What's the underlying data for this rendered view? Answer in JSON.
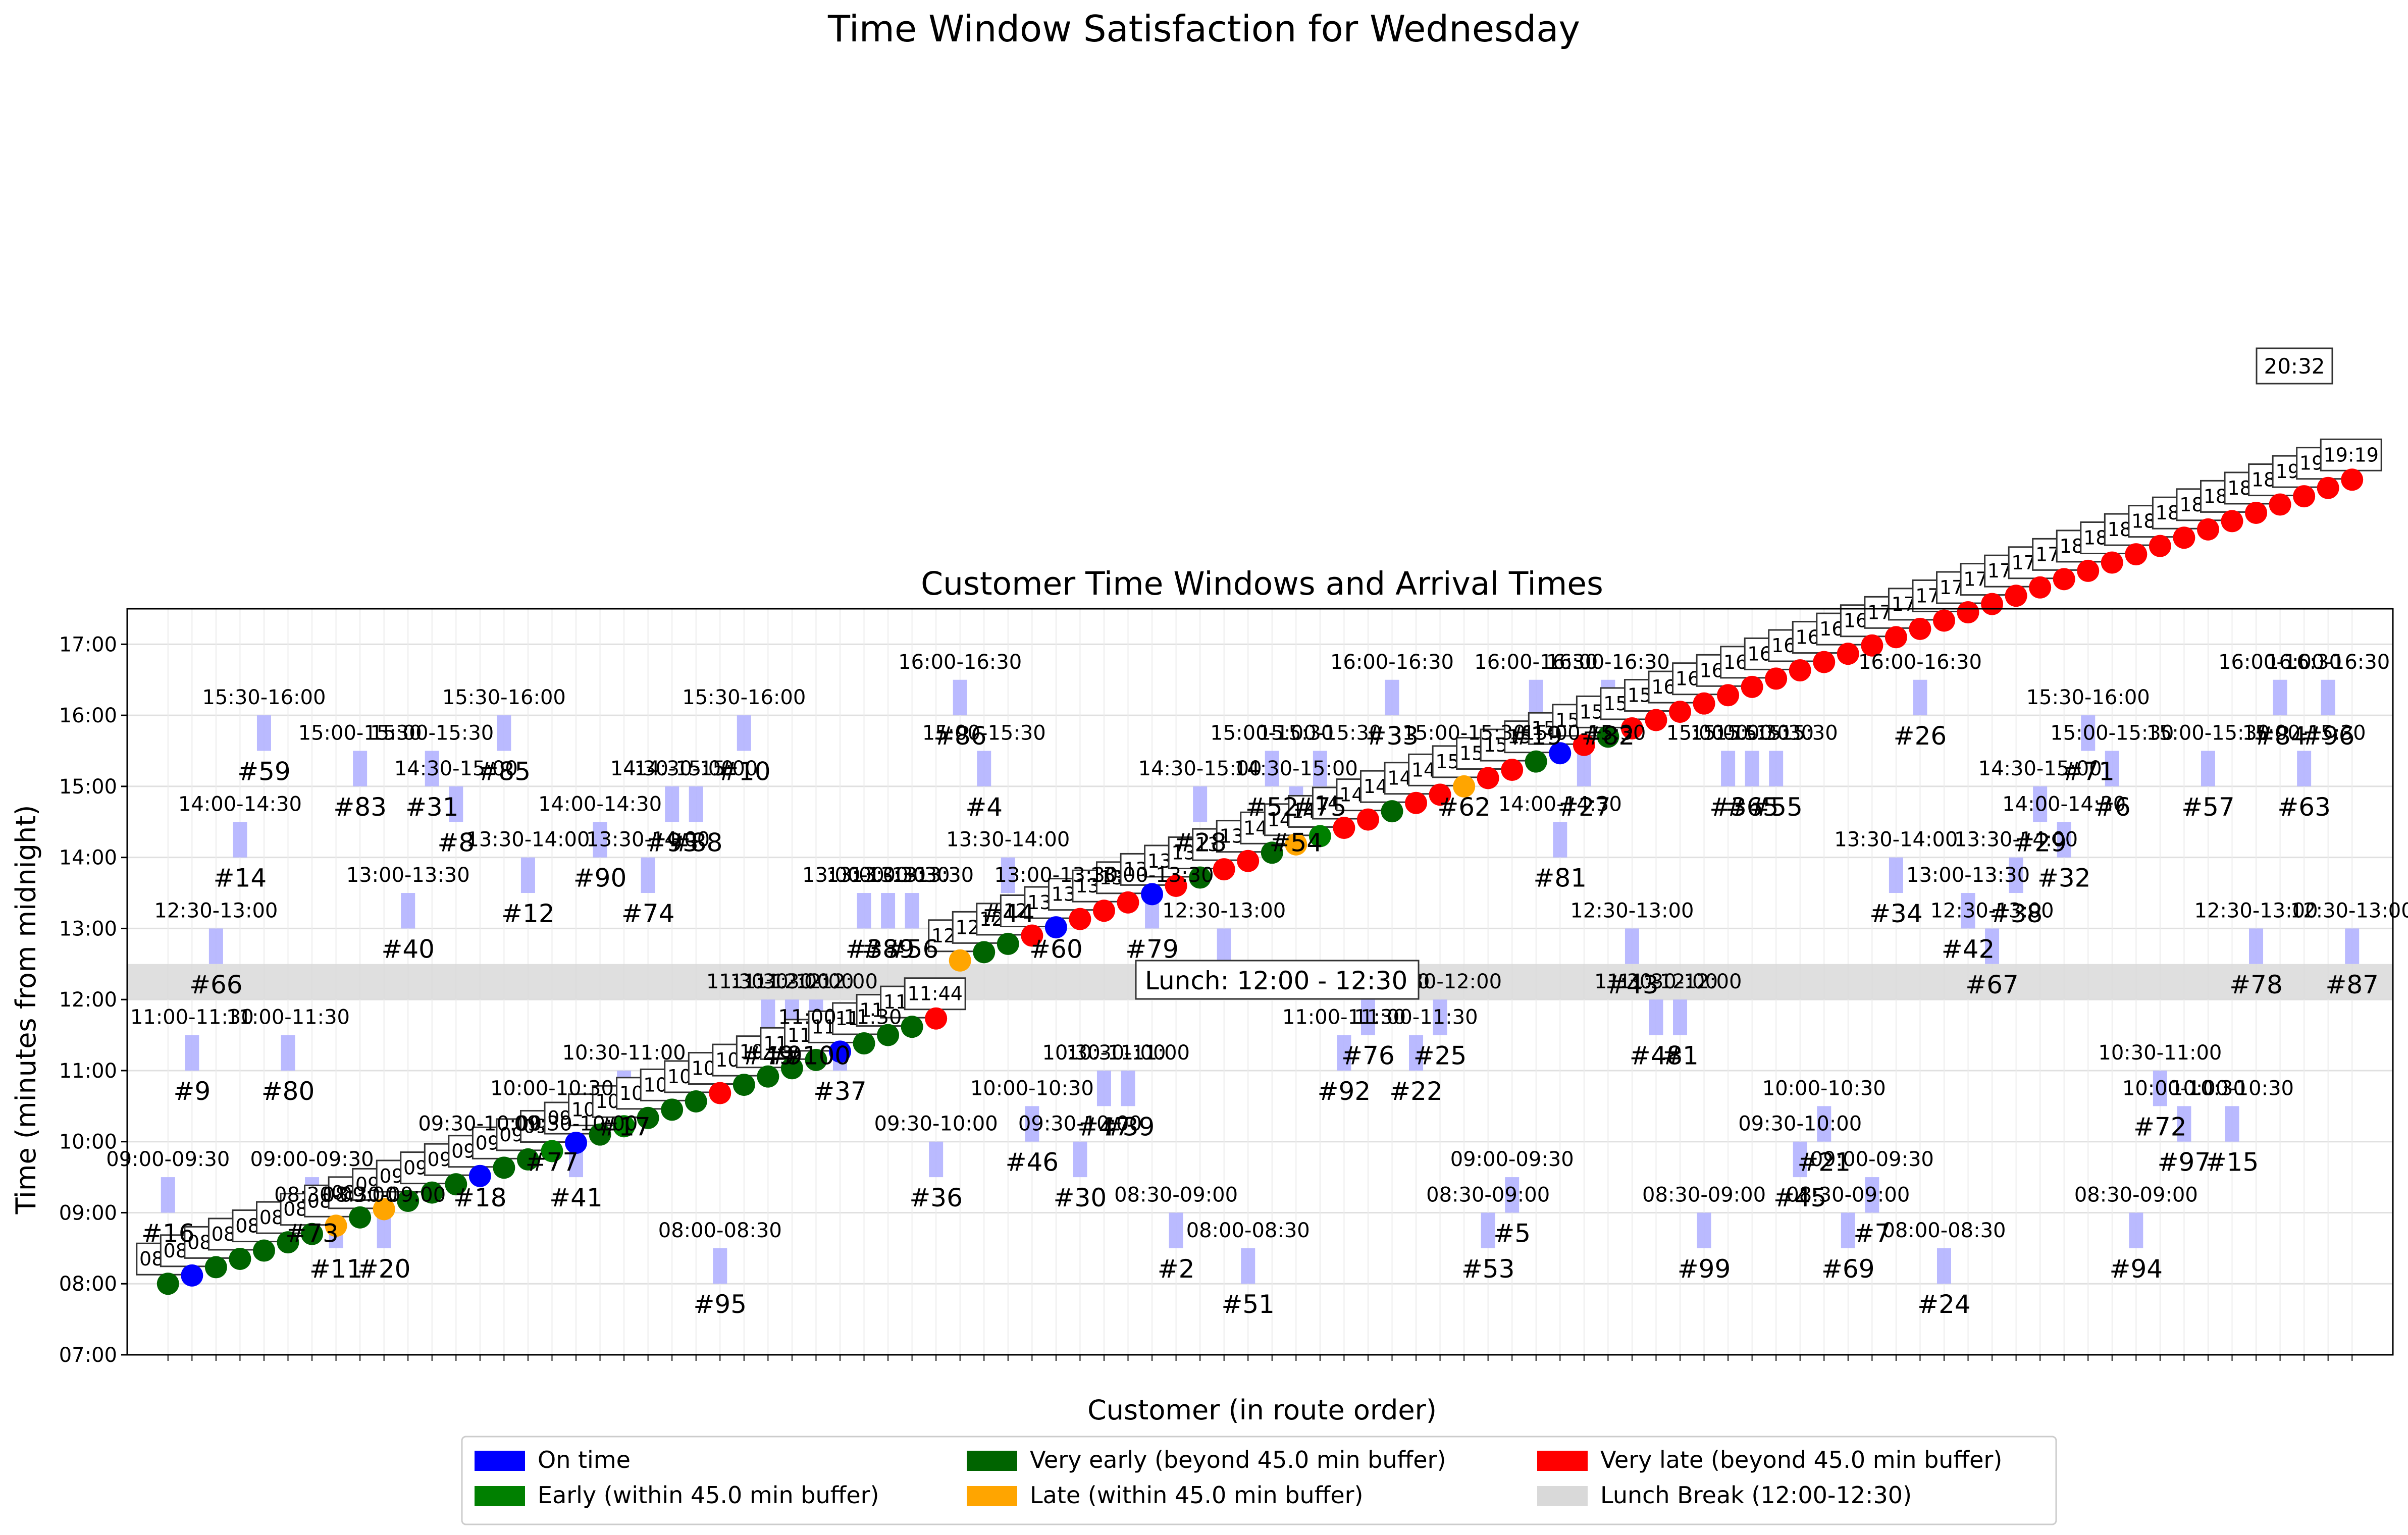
{
  "figure": {
    "suptitle": "Time Window Satisfaction for Wednesday"
  },
  "colors": {
    "on_time": "#0000ff",
    "early": "#008000",
    "very_early": "#006400",
    "late": "#ffa500",
    "very_late": "#ff0000",
    "window": "#b3b3ff",
    "lunch": "#d9d9d9"
  },
  "chart_data": {
    "type": "scatter",
    "title": "Customer Time Windows and Arrival Times",
    "xlabel": "Customer (in route order)",
    "ylabel": "Time (minutes from midnight)",
    "ylim": [
      "07:00",
      "17:30"
    ],
    "yticks": [
      "07:00",
      "08:00",
      "09:00",
      "10:00",
      "11:00",
      "12:00",
      "13:00",
      "14:00",
      "15:00",
      "16:00",
      "17:00"
    ],
    "grid": true,
    "lunch_label": "Lunch: 12:00 - 12:30",
    "lunch_window": [
      "12:00",
      "12:30"
    ],
    "final_label": "20:32",
    "customers": [
      {
        "n": 16,
        "w": "09:00-09:30",
        "a": "08:00",
        "s": "very_early"
      },
      {
        "n": 9,
        "w": "11:00-11:30",
        "a": "08:07",
        "s": "on_time"
      },
      {
        "n": 66,
        "w": "12:30-13:00",
        "a": "08:14",
        "s": "very_early"
      },
      {
        "n": 14,
        "w": "14:00-14:30",
        "a": "08:21",
        "s": "very_early"
      },
      {
        "n": 59,
        "w": "15:30-16:00",
        "a": "08:28",
        "s": "very_early"
      },
      {
        "n": 80,
        "w": "11:00-11:30",
        "a": "08:35",
        "s": "very_early"
      },
      {
        "n": 73,
        "w": "09:00-09:30",
        "a": "08:42",
        "s": "very_early"
      },
      {
        "n": 11,
        "w": "08:30-09:00",
        "a": "08:49",
        "s": "late"
      },
      {
        "n": 83,
        "w": "15:00-15:30",
        "a": "08:56",
        "s": "very_early"
      },
      {
        "n": 20,
        "w": "08:30-09:00",
        "a": "09:03",
        "s": "late"
      },
      {
        "n": 40,
        "w": "13:00-13:30",
        "a": "09:10",
        "s": "very_early"
      },
      {
        "n": 31,
        "w": "15:00-15:30",
        "a": "09:17",
        "s": "very_early"
      },
      {
        "n": 8,
        "w": "14:30-15:00",
        "a": "09:24",
        "s": "very_early"
      },
      {
        "n": 18,
        "w": "09:30-10:00",
        "a": "09:31",
        "s": "on_time"
      },
      {
        "n": 85,
        "w": "15:30-16:00",
        "a": "09:38",
        "s": "very_early"
      },
      {
        "n": 12,
        "w": "13:30-14:00",
        "a": "09:45",
        "s": "very_early"
      },
      {
        "n": 77,
        "w": "10:00-10:30",
        "a": "09:52",
        "s": "early"
      },
      {
        "n": 41,
        "w": "09:30-10:00",
        "a": "09:59",
        "s": "on_time"
      },
      {
        "n": 90,
        "w": "14:00-14:30",
        "a": "10:06",
        "s": "very_early"
      },
      {
        "n": 17,
        "w": "10:30-11:00",
        "a": "10:13",
        "s": "early"
      },
      {
        "n": 74,
        "w": "13:30-14:00",
        "a": "10:20",
        "s": "very_early"
      },
      {
        "n": 93,
        "w": "14:30-15:00",
        "a": "10:27",
        "s": "very_early"
      },
      {
        "n": 88,
        "w": "14:30-15:00",
        "a": "10:34",
        "s": "very_early"
      },
      {
        "n": 95,
        "w": "08:00-08:30",
        "a": "10:41",
        "s": "very_late"
      },
      {
        "n": 10,
        "w": "15:30-16:00",
        "a": "10:48",
        "s": "very_early"
      },
      {
        "n": 49,
        "w": "11:30-12:00",
        "a": "10:55",
        "s": "very_early"
      },
      {
        "n": 91,
        "w": "11:30-12:00",
        "a": "11:02",
        "s": "very_early"
      },
      {
        "n": 100,
        "w": "11:30-12:00",
        "a": "11:09",
        "s": "very_early"
      },
      {
        "n": 37,
        "w": "11:00-11:30",
        "a": "11:16",
        "s": "on_time"
      },
      {
        "n": 3,
        "w": "13:00-13:30",
        "a": "11:23",
        "s": "very_early"
      },
      {
        "n": 89,
        "w": "13:00-13:30",
        "a": "11:30",
        "s": "very_early"
      },
      {
        "n": 56,
        "w": "13:00-13:30",
        "a": "11:37",
        "s": "very_early"
      },
      {
        "n": 36,
        "w": "09:30-10:00",
        "a": "11:44",
        "s": "very_late"
      },
      {
        "n": 86,
        "w": "16:00-16:30",
        "a": "12:33",
        "s": "late"
      },
      {
        "n": 4,
        "w": "15:00-15:30",
        "a": "12:40",
        "s": "very_early"
      },
      {
        "n": 44,
        "w": "13:30-14:00",
        "a": "12:47",
        "s": "very_early"
      },
      {
        "n": 46,
        "w": "10:00-10:30",
        "a": "12:54",
        "s": "very_late"
      },
      {
        "n": 60,
        "w": "13:00-13:30",
        "a": "13:01",
        "s": "on_time"
      },
      {
        "n": 30,
        "w": "09:30-10:00",
        "a": "13:08",
        "s": "very_late"
      },
      {
        "n": 47,
        "w": "10:30-11:00",
        "a": "13:15",
        "s": "very_late"
      },
      {
        "n": 39,
        "w": "10:30-11:00",
        "a": "13:22",
        "s": "very_late"
      },
      {
        "n": 79,
        "w": "13:00-13:30",
        "a": "13:29",
        "s": "on_time"
      },
      {
        "n": 2,
        "w": "08:30-09:00",
        "a": "13:36",
        "s": "very_late"
      },
      {
        "n": 28,
        "w": "14:30-15:00",
        "a": "13:43",
        "s": "very_early"
      },
      {
        "n": 13,
        "w": "12:30-13:00",
        "a": "13:50",
        "s": "very_late"
      },
      {
        "n": 51,
        "w": "08:00-08:30",
        "a": "13:57",
        "s": "very_late"
      },
      {
        "n": 52,
        "w": "15:00-15:30",
        "a": "14:04",
        "s": "very_early"
      },
      {
        "n": 54,
        "w": "14:30-15:00",
        "a": "14:11",
        "s": "late"
      },
      {
        "n": 75,
        "w": "15:00-15:30",
        "a": "14:18",
        "s": "early"
      },
      {
        "n": 92,
        "w": "11:00-11:30",
        "a": "14:25",
        "s": "very_late"
      },
      {
        "n": 76,
        "w": "11:30-12:00",
        "a": "14:32",
        "s": "very_late"
      },
      {
        "n": 33,
        "w": "16:00-16:30",
        "a": "14:39",
        "s": "very_early"
      },
      {
        "n": 22,
        "w": "11:00-11:30",
        "a": "14:46",
        "s": "very_late"
      },
      {
        "n": 25,
        "w": "11:30-12:00",
        "a": "14:53",
        "s": "very_late"
      },
      {
        "n": 62,
        "w": "15:00-15:30",
        "a": "15:00",
        "s": "late"
      },
      {
        "n": 53,
        "w": "08:30-09:00",
        "a": "15:07",
        "s": "very_late"
      },
      {
        "n": 5,
        "w": "09:00-09:30",
        "a": "15:14",
        "s": "very_late"
      },
      {
        "n": 19,
        "w": "16:00-16:30",
        "a": "15:21",
        "s": "very_early"
      },
      {
        "n": 81,
        "w": "14:00-14:30",
        "a": "15:28",
        "s": "on_time"
      },
      {
        "n": 27,
        "w": "15:00-15:30",
        "a": "15:35",
        "s": "very_late"
      },
      {
        "n": 82,
        "w": "16:00-16:30",
        "a": "15:42",
        "s": "very_early"
      },
      {
        "n": 43,
        "w": "12:30-13:00",
        "a": "15:49",
        "s": "very_late"
      },
      {
        "n": 48,
        "w": "11:30-12:00",
        "a": "15:56",
        "s": "very_late"
      },
      {
        "n": 1,
        "w": "11:30-12:00",
        "a": "16:03",
        "s": "very_late"
      },
      {
        "n": 99,
        "w": "08:30-09:00",
        "a": "16:10",
        "s": "very_late"
      },
      {
        "n": 3,
        "w": "15:00-15:30",
        "a": "16:17",
        "s": "very_late"
      },
      {
        "n": 65,
        "w": "15:00-15:30",
        "a": "16:24",
        "s": "very_late"
      },
      {
        "n": 55,
        "w": "15:00-15:30",
        "a": "16:31",
        "s": "very_late"
      },
      {
        "n": 45,
        "w": "09:30-10:00",
        "a": "16:38",
        "s": "very_late"
      },
      {
        "n": 21,
        "w": "10:00-10:30",
        "a": "16:45",
        "s": "very_late"
      },
      {
        "n": 69,
        "w": "08:30-09:00",
        "a": "16:52",
        "s": "very_late"
      },
      {
        "n": 7,
        "w": "09:00-09:30",
        "a": "16:59",
        "s": "very_late"
      },
      {
        "n": 34,
        "w": "13:30-14:00",
        "a": "17:06",
        "s": "very_late"
      },
      {
        "n": 26,
        "w": "16:00-16:30",
        "a": "17:13",
        "s": "very_late"
      },
      {
        "n": 24,
        "w": "08:00-08:30",
        "a": "17:20",
        "s": "very_late"
      },
      {
        "n": 42,
        "w": "13:00-13:30",
        "a": "17:27",
        "s": "very_late"
      },
      {
        "n": 67,
        "w": "12:30-13:00",
        "a": "17:34",
        "s": "very_late"
      },
      {
        "n": 38,
        "w": "13:30-14:00",
        "a": "17:41",
        "s": "very_late"
      },
      {
        "n": 29,
        "w": "14:30-15:00",
        "a": "17:48",
        "s": "very_late"
      },
      {
        "n": 32,
        "w": "14:00-14:30",
        "a": "17:55",
        "s": "very_late"
      },
      {
        "n": 71,
        "w": "15:30-16:00",
        "a": "18:02",
        "s": "very_late"
      },
      {
        "n": 6,
        "w": "15:00-15:30",
        "a": "18:09",
        "s": "very_late"
      },
      {
        "n": 94,
        "w": "08:30-09:00",
        "a": "18:16",
        "s": "very_late"
      },
      {
        "n": 72,
        "w": "10:30-11:00",
        "a": "18:23",
        "s": "very_late"
      },
      {
        "n": 97,
        "w": "10:00-10:30",
        "a": "18:30",
        "s": "very_late"
      },
      {
        "n": 57,
        "w": "15:00-15:30",
        "a": "18:37",
        "s": "very_late"
      },
      {
        "n": 15,
        "w": "10:00-10:30",
        "a": "18:44",
        "s": "very_late"
      },
      {
        "n": 78,
        "w": "12:30-13:00",
        "a": "18:51",
        "s": "very_late"
      },
      {
        "n": 84,
        "w": "16:00-16:30",
        "a": "18:58",
        "s": "very_late"
      },
      {
        "n": 63,
        "w": "15:00-15:30",
        "a": "19:05",
        "s": "very_late"
      },
      {
        "n": 96,
        "w": "16:00-16:30",
        "a": "19:12",
        "s": "very_late"
      },
      {
        "n": 87,
        "w": "12:30-13:00",
        "a": "19:19",
        "s": "very_late"
      }
    ],
    "legend": [
      {
        "label": "On time",
        "color_key": "on_time"
      },
      {
        "label": "Early (within 45.0 min buffer)",
        "color_key": "early"
      },
      {
        "label": "Very early (beyond 45.0 min buffer)",
        "color_key": "very_early"
      },
      {
        "label": "Late (within 45.0 min buffer)",
        "color_key": "late"
      },
      {
        "label": "Very late (beyond 45.0 min buffer)",
        "color_key": "very_late"
      },
      {
        "label": "Lunch Break (12:00-12:30)",
        "color_key": "lunch"
      }
    ]
  }
}
